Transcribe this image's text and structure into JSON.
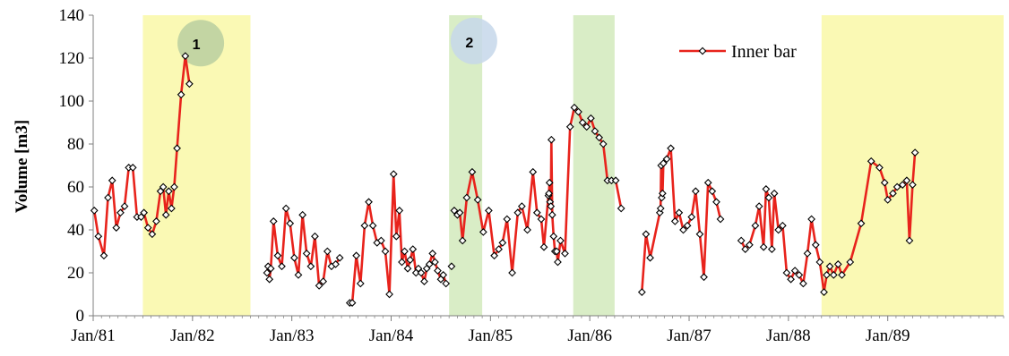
{
  "chart_data": {
    "type": "line",
    "title": "",
    "xlabel": "",
    "ylabel": "Volume [m3]",
    "ylim": [
      0,
      140
    ],
    "yticks": [
      0,
      20,
      40,
      60,
      80,
      100,
      120,
      140
    ],
    "xlim": [
      "1981-01",
      "1990-03"
    ],
    "xticks": [
      "Jan/81",
      "Jan/82",
      "Jan/83",
      "Jan/84",
      "Jan/85",
      "Jan/86",
      "Jan/87",
      "Jan/88",
      "Jan/89"
    ],
    "grid": false,
    "legend_position": "top-right",
    "shaded_periods": [
      {
        "from": "1981-07",
        "to": "1982-08",
        "color": "#FAF9B4"
      },
      {
        "from": "1984-08",
        "to": "1984-12",
        "color": "#D9EDC6"
      },
      {
        "from": "1985-11",
        "to": "1986-04",
        "color": "#D9EDC6"
      },
      {
        "from": "1988-05",
        "to": "1990-03",
        "color": "#FAF9B4"
      }
    ],
    "annotations": [
      {
        "label": "1",
        "x": "1982-02",
        "y": 127,
        "color": "#B8CFA0"
      },
      {
        "label": "2",
        "x": "1984-11",
        "y": 128,
        "color": "#C6D7EA"
      }
    ],
    "series": [
      {
        "name": "Inner bar",
        "line_color": "#E8231C",
        "marker": "diamond",
        "segments": [
          [
            [
              "1981-01-05",
              49
            ],
            [
              "1981-01-20",
              37
            ],
            [
              "1981-02-10",
              28
            ],
            [
              "1981-02-25",
              55
            ],
            [
              "1981-03-10",
              63
            ],
            [
              "1981-03-25",
              41
            ],
            [
              "1981-04-10",
              48
            ],
            [
              "1981-04-25",
              51
            ],
            [
              "1981-05-10",
              69
            ],
            [
              "1981-05-25",
              69
            ],
            [
              "1981-06-10",
              46
            ],
            [
              "1981-06-25",
              46
            ],
            [
              "1981-07-05",
              48
            ],
            [
              "1981-07-20",
              41
            ],
            [
              "1981-08-05",
              38
            ],
            [
              "1981-08-20",
              44
            ],
            [
              "1981-09-05",
              58
            ],
            [
              "1981-09-15",
              60
            ],
            [
              "1981-09-25",
              47
            ],
            [
              "1981-10-05",
              58
            ],
            [
              "1981-10-15",
              50
            ],
            [
              "1981-10-25",
              60
            ],
            [
              "1981-11-05",
              78
            ],
            [
              "1981-11-20",
              103
            ],
            [
              "1981-12-05",
              121
            ],
            [
              "1981-12-20",
              108
            ]
          ],
          [
            [
              "1982-10-01",
              20
            ],
            [
              "1982-10-05",
              23
            ],
            [
              "1982-10-10",
              17
            ],
            [
              "1982-10-15",
              22
            ],
            [
              "1982-10-25",
              44
            ],
            [
              "1982-11-10",
              28
            ],
            [
              "1982-11-25",
              23
            ],
            [
              "1982-12-10",
              50
            ],
            [
              "1982-12-25",
              43
            ],
            [
              "1983-01-10",
              27
            ],
            [
              "1983-01-25",
              19
            ],
            [
              "1983-02-10",
              47
            ],
            [
              "1983-02-25",
              29
            ],
            [
              "1983-03-10",
              23
            ],
            [
              "1983-03-25",
              37
            ],
            [
              "1983-04-10",
              14
            ],
            [
              "1983-04-25",
              16
            ],
            [
              "1983-05-10",
              30
            ],
            [
              "1983-05-25",
              23
            ],
            [
              "1983-06-10",
              24
            ],
            [
              "1983-06-25",
              27
            ]
          ],
          [
            [
              "1983-08-01",
              6
            ],
            [
              "1983-08-10",
              6
            ],
            [
              "1983-08-25",
              28
            ],
            [
              "1983-09-10",
              15
            ],
            [
              "1983-09-25",
              42
            ],
            [
              "1983-10-10",
              53
            ],
            [
              "1983-10-25",
              42
            ],
            [
              "1983-11-10",
              34
            ],
            [
              "1983-11-25",
              35
            ],
            [
              "1983-12-10",
              30
            ],
            [
              "1983-12-25",
              10
            ],
            [
              "1984-01-10",
              66
            ],
            [
              "1984-01-20",
              37
            ],
            [
              "1984-02-01",
              49
            ],
            [
              "1984-02-10",
              25
            ],
            [
              "1984-02-20",
              30
            ],
            [
              "1984-03-01",
              22
            ],
            [
              "1984-03-10",
              26
            ],
            [
              "1984-03-20",
              31
            ],
            [
              "1984-04-01",
              20
            ],
            [
              "1984-04-10",
              22
            ],
            [
              "1984-04-20",
              20
            ],
            [
              "1984-05-01",
              16
            ],
            [
              "1984-05-10",
              22
            ],
            [
              "1984-05-20",
              24
            ],
            [
              "1984-06-01",
              29
            ],
            [
              "1984-06-10",
              25
            ],
            [
              "1984-06-20",
              21
            ],
            [
              "1984-07-01",
              17
            ],
            [
              "1984-07-10",
              19
            ],
            [
              "1984-07-20",
              15
            ]
          ],
          [
            [
              "1984-08-10",
              23
            ]
          ],
          [
            [
              "1984-08-20",
              49
            ],
            [
              "1984-09-01",
              47
            ],
            [
              "1984-09-10",
              48
            ],
            [
              "1984-09-20",
              35
            ],
            [
              "1984-10-05",
              55
            ],
            [
              "1984-10-25",
              67
            ],
            [
              "1984-11-15",
              54
            ],
            [
              "1984-12-05",
              39
            ],
            [
              "1984-12-25",
              49
            ],
            [
              "1985-01-15",
              28
            ],
            [
              "1985-02-01",
              31
            ],
            [
              "1985-02-15",
              34
            ],
            [
              "1985-03-01",
              45
            ],
            [
              "1985-03-20",
              20
            ],
            [
              "1985-04-10",
              48
            ],
            [
              "1985-04-25",
              51
            ],
            [
              "1985-05-15",
              40
            ],
            [
              "1985-06-05",
              67
            ],
            [
              "1985-06-20",
              48
            ],
            [
              "1985-07-05",
              45
            ],
            [
              "1985-07-15",
              32
            ],
            [
              "1985-08-01",
              56
            ],
            [
              "1985-08-03",
              57
            ],
            [
              "1985-08-05",
              62
            ],
            [
              "1985-08-07",
              53
            ],
            [
              "1985-08-10",
              51
            ],
            [
              "1985-08-12",
              82
            ],
            [
              "1985-08-15",
              47
            ],
            [
              "1985-08-20",
              37
            ],
            [
              "1985-08-25",
              30
            ],
            [
              "1985-09-01",
              30
            ],
            [
              "1985-09-05",
              25
            ],
            [
              "1985-09-15",
              35
            ],
            [
              "1985-10-01",
              29
            ],
            [
              "1985-10-20",
              88
            ],
            [
              "1985-11-05",
              97
            ],
            [
              "1985-11-20",
              95
            ],
            [
              "1985-12-05",
              90
            ],
            [
              "1985-12-20",
              88
            ],
            [
              "1986-01-05",
              92
            ],
            [
              "1986-01-20",
              86
            ],
            [
              "1986-02-05",
              83
            ],
            [
              "1986-02-20",
              80
            ],
            [
              "1986-03-05",
              63
            ],
            [
              "1986-03-20",
              63
            ],
            [
              "1986-04-05",
              63
            ],
            [
              "1986-04-25",
              50
            ]
          ],
          [
            [
              "1986-07-10",
              11
            ],
            [
              "1986-07-25",
              38
            ],
            [
              "1986-08-10",
              27
            ],
            [
              "1986-09-15",
              48
            ],
            [
              "1986-09-18",
              50
            ],
            [
              "1986-09-20",
              70
            ],
            [
              "1986-09-22",
              55
            ],
            [
              "1986-09-25",
              57
            ],
            [
              "1986-09-28",
              71
            ],
            [
              "1986-10-10",
              73
            ],
            [
              "1986-10-25",
              78
            ],
            [
              "1986-11-10",
              44
            ],
            [
              "1986-11-25",
              48
            ],
            [
              "1986-12-10",
              40
            ],
            [
              "1986-12-25",
              42
            ],
            [
              "1987-01-10",
              46
            ],
            [
              "1987-01-25",
              58
            ],
            [
              "1987-02-10",
              38
            ],
            [
              "1987-02-25",
              18
            ],
            [
              "1987-03-10",
              62
            ],
            [
              "1987-03-25",
              58
            ],
            [
              "1987-04-10",
              53
            ],
            [
              "1987-04-25",
              45
            ]
          ],
          [
            [
              "1987-07-10",
              35
            ],
            [
              "1987-07-25",
              31
            ],
            [
              "1987-08-10",
              33
            ],
            [
              "1987-09-01",
              42
            ],
            [
              "1987-09-15",
              51
            ],
            [
              "1987-10-01",
              32
            ],
            [
              "1987-10-10",
              59
            ],
            [
              "1987-10-20",
              55
            ],
            [
              "1987-11-01",
              31
            ],
            [
              "1987-11-10",
              57
            ],
            [
              "1987-11-25",
              40
            ],
            [
              "1987-12-10",
              42
            ],
            [
              "1987-12-25",
              20
            ],
            [
              "1988-01-10",
              17
            ],
            [
              "1988-01-25",
              21
            ],
            [
              "1988-02-10",
              19
            ],
            [
              "1988-02-25",
              15
            ],
            [
              "1988-03-10",
              29
            ],
            [
              "1988-03-25",
              45
            ],
            [
              "1988-04-10",
              33
            ],
            [
              "1988-04-25",
              25
            ],
            [
              "1988-05-10",
              11
            ],
            [
              "1988-05-20",
              19
            ],
            [
              "1988-06-01",
              23
            ],
            [
              "1988-06-15",
              19
            ],
            [
              "1988-07-01",
              24
            ],
            [
              "1988-07-15",
              19
            ],
            [
              "1988-08-15",
              25
            ],
            [
              "1988-09-25",
              43
            ],
            [
              "1988-11-01",
              72
            ],
            [
              "1988-12-01",
              69
            ],
            [
              "1988-12-20",
              62
            ],
            [
              "1989-01-01",
              54
            ],
            [
              "1989-01-20",
              57
            ],
            [
              "1989-02-05",
              60
            ],
            [
              "1989-02-25",
              61
            ],
            [
              "1989-03-10",
              63
            ],
            [
              "1989-03-20",
              35
            ],
            [
              "1989-04-01",
              61
            ],
            [
              "1989-04-10",
              76
            ]
          ]
        ]
      }
    ]
  }
}
